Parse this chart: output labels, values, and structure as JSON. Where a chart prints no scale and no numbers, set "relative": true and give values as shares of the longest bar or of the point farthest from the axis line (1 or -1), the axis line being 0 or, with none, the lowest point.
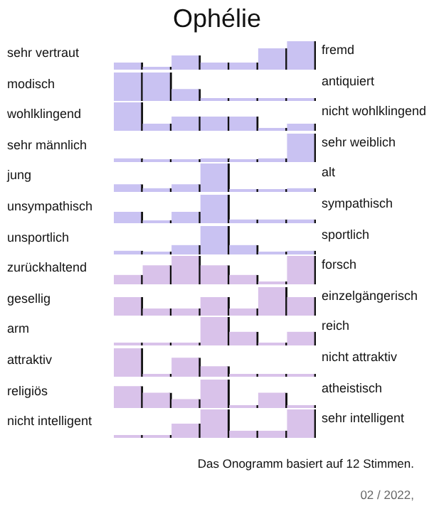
{
  "chart_data": [
    {
      "type": "bar",
      "title": "Ophélie",
      "ylabel": "sehr vertraut",
      "y2label": "fremd",
      "categories": [
        null,
        null,
        null,
        null,
        null,
        null,
        null
      ],
      "values": [
        0.25,
        0,
        0.5,
        0.25,
        0.25,
        0.75,
        1
      ],
      "color": "#c9c2f2",
      "relative": true,
      "tick_labels": false
    },
    {
      "type": "bar",
      "ylabel": "modisch",
      "y2label": "antiquiert",
      "categories": [
        null,
        null,
        null,
        null,
        null,
        null,
        null
      ],
      "values": [
        1,
        1,
        0.42,
        0,
        0,
        0,
        0
      ],
      "color": "#c9c2f2",
      "relative": true,
      "tick_labels": false
    },
    {
      "type": "bar",
      "ylabel": "wohlklingend",
      "y2label": "nicht wohlklingend",
      "categories": [
        null,
        null,
        null,
        null,
        null,
        null,
        null
      ],
      "values": [
        1,
        0.25,
        0.5,
        0.5,
        0.5,
        0,
        0.25
      ],
      "color": "#c9c2f2",
      "relative": true,
      "tick_labels": false
    },
    {
      "type": "bar",
      "ylabel": "sehr männlich",
      "y2label": "sehr weiblich",
      "categories": [
        null,
        null,
        null,
        null,
        null,
        null,
        null
      ],
      "values": [
        0.13,
        0,
        0,
        0.13,
        0,
        0.13,
        1
      ],
      "color": "#c9c2f2",
      "relative": true,
      "tick_labels": false
    },
    {
      "type": "bar",
      "ylabel": "jung",
      "y2label": "alt",
      "categories": [
        null,
        null,
        null,
        null,
        null,
        null,
        null
      ],
      "values": [
        0.27,
        0.13,
        0.27,
        1,
        0,
        0,
        0.13
      ],
      "color": "#c9c2f2",
      "relative": true,
      "tick_labels": false
    },
    {
      "type": "bar",
      "ylabel": "unsympathisch",
      "y2label": "sympathisch",
      "categories": [
        null,
        null,
        null,
        null,
        null,
        null,
        null
      ],
      "values": [
        0.4,
        0,
        0.4,
        1,
        0.13,
        0.13,
        0.13
      ],
      "color": "#c9c2f2",
      "relative": true,
      "tick_labels": false
    },
    {
      "type": "bar",
      "ylabel": "unsportlich",
      "y2label": "sportlich",
      "categories": [
        null,
        null,
        null,
        null,
        null,
        null,
        null
      ],
      "values": [
        0.13,
        0,
        0.33,
        1,
        0.33,
        0,
        0.13
      ],
      "color": "#c9c2f2",
      "relative": true,
      "tick_labels": false
    },
    {
      "type": "bar",
      "ylabel": "zurückhaltend",
      "y2label": "forsch",
      "categories": [
        null,
        null,
        null,
        null,
        null,
        null,
        null
      ],
      "values": [
        0.33,
        0.67,
        1,
        0.67,
        0.33,
        0,
        1
      ],
      "color": "#d9c2ea",
      "relative": true,
      "tick_labels": false
    },
    {
      "type": "bar",
      "ylabel": "gesellig",
      "y2label": "einzelgängerisch",
      "categories": [
        null,
        null,
        null,
        null,
        null,
        null,
        null
      ],
      "values": [
        0.65,
        0.25,
        0.25,
        0.65,
        0.25,
        1,
        0.65
      ],
      "color": "#d9c2ea",
      "relative": true,
      "tick_labels": false
    },
    {
      "type": "bar",
      "ylabel": "arm",
      "y2label": "reich",
      "categories": [
        null,
        null,
        null,
        null,
        null,
        null,
        null
      ],
      "values": [
        0,
        0,
        0,
        1,
        0.48,
        0,
        0.48
      ],
      "color": "#d9c2ea",
      "relative": true,
      "tick_labels": false
    },
    {
      "type": "bar",
      "ylabel": "attraktiv",
      "y2label": "nicht attraktiv",
      "categories": [
        null,
        null,
        null,
        null,
        null,
        null,
        null
      ],
      "values": [
        1,
        0,
        0.67,
        0.37,
        0,
        0,
        0
      ],
      "color": "#d9c2ea",
      "relative": true,
      "tick_labels": false
    },
    {
      "type": "bar",
      "ylabel": "religiös",
      "y2label": "atheistisch",
      "categories": [
        null,
        null,
        null,
        null,
        null,
        null,
        null
      ],
      "values": [
        0.77,
        0.54,
        0.31,
        1,
        0,
        0.54,
        0
      ],
      "color": "#d9c2ea",
      "relative": true,
      "tick_labels": false
    },
    {
      "type": "bar",
      "ylabel": "nicht intelligent",
      "y2label": "sehr intelligent",
      "categories": [
        null,
        null,
        null,
        null,
        null,
        null,
        null
      ],
      "values": [
        0,
        0,
        0.5,
        1,
        0.25,
        0.25,
        1
      ],
      "color": "#d9c2ea",
      "relative": true,
      "tick_labels": false,
      "annotations": [
        "Das Onogramm basiert auf 12 Stimmen.",
        "02 / 2022,"
      ]
    }
  ]
}
